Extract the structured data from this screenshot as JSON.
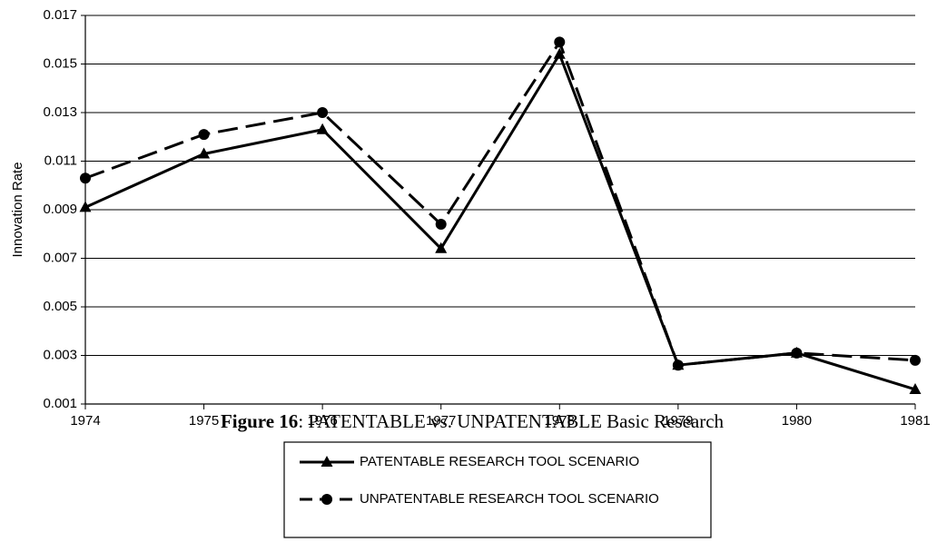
{
  "chart_data": {
    "type": "line",
    "y_label": "Innovation Rate",
    "caption_label": "Figure 16",
    "caption_text": ": PATENTABLE vs. UNPATENTABLE Basic Research",
    "x": [
      1974,
      1975,
      1976,
      1977,
      1978,
      1979,
      1980,
      1981
    ],
    "xlim": [
      1974,
      1981
    ],
    "xticks": [
      1974,
      1975,
      1976,
      1977,
      1978,
      1979,
      1980,
      1981
    ],
    "ylim": [
      0.001,
      0.017
    ],
    "yticks": [
      0.001,
      0.003,
      0.005,
      0.007,
      0.009,
      0.011,
      0.013,
      0.015,
      0.017
    ],
    "grid": true,
    "series": [
      {
        "name": "PATENTABLE RESEARCH TOOL SCENARIO",
        "color": "#000000",
        "marker": "triangle",
        "dash": "solid",
        "values": [
          0.0091,
          0.0113,
          0.0123,
          0.0074,
          0.0154,
          0.0026,
          0.0031,
          0.0016
        ]
      },
      {
        "name": "UNPATENTABLE RESEARCH TOOL SCENARIO",
        "color": "#000000",
        "marker": "circle",
        "dash": "dashed",
        "values": [
          0.0103,
          0.0121,
          0.013,
          0.0084,
          0.0159,
          0.0026,
          0.0031,
          0.0028
        ]
      }
    ]
  }
}
